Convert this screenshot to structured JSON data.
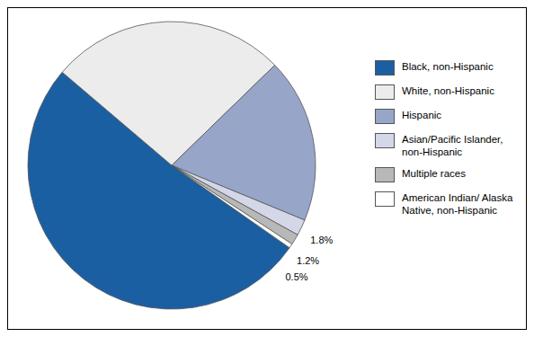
{
  "chart_data": {
    "type": "pie",
    "categories": [
      "Black, non-Hispanic",
      "White, non-Hispanic",
      "Hispanic",
      "Asian/Pacific Islander, non-Hispanic",
      "Multiple races",
      "American Indian/ Alaska Native, non-Hispanic"
    ],
    "values": [
      51.5,
      26.5,
      18.5,
      1.8,
      1.2,
      0.5
    ],
    "value_labels": [
      null,
      null,
      null,
      "1.8%",
      "1.2%",
      "0.5%"
    ],
    "colors": [
      "#1b5fa3",
      "#ececec",
      "#97a5c9",
      "#d3d7e8",
      "#b8b8b8",
      "#ffffff"
    ],
    "data_labels": true,
    "legend": "right"
  }
}
